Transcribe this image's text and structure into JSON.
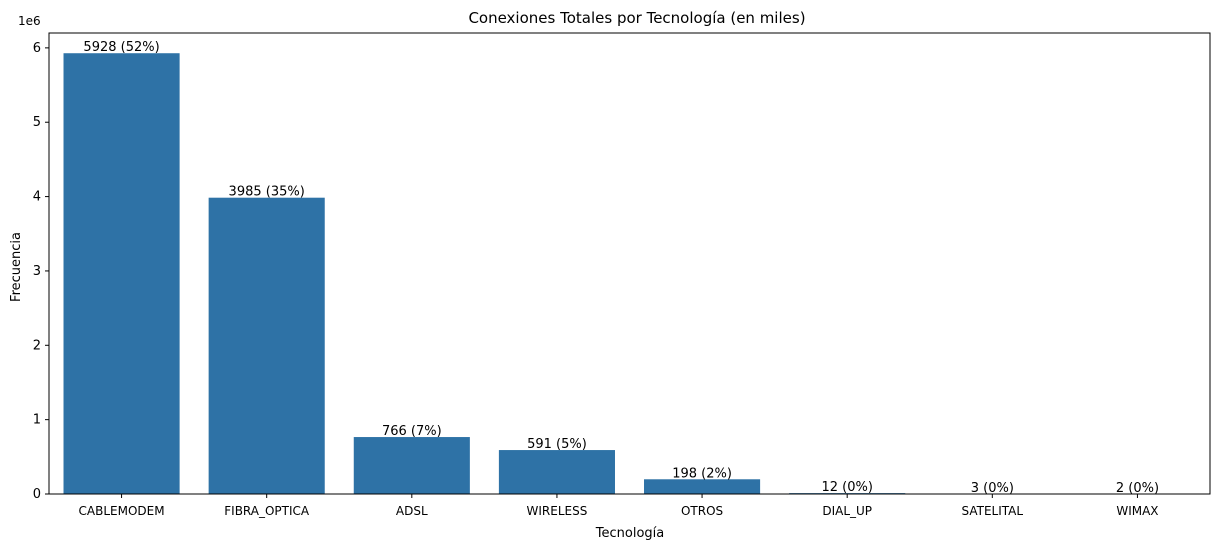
{
  "chart_data": {
    "type": "bar",
    "title": "Conexiones Totales por Tecnología (en miles)",
    "xlabel": "Tecnología",
    "ylabel": "Frecuencia",
    "y_offset_label": "1e6",
    "categories": [
      "CABLEMODEM",
      "FIBRA_OPTICA",
      "ADSL",
      "WIRELESS",
      "OTROS",
      "DIAL_UP",
      "SATELITAL",
      "WIMAX"
    ],
    "values": [
      5928000,
      3985000,
      766000,
      591000,
      198000,
      12000,
      3000,
      2000
    ],
    "data_labels": [
      "5928 (52%)",
      "3985 (35%)",
      "766 (7%)",
      "591 (5%)",
      "198 (2%)",
      "12 (0%)",
      "3 (0%)",
      "2 (0%)"
    ],
    "ylim": [
      0,
      6200000
    ],
    "yticks": [
      0,
      1000000,
      2000000,
      3000000,
      4000000,
      5000000,
      6000000
    ],
    "ytick_labels": [
      "0",
      "1",
      "2",
      "3",
      "4",
      "5",
      "6"
    ],
    "grid": false,
    "bar_color": "#2e72a6"
  }
}
